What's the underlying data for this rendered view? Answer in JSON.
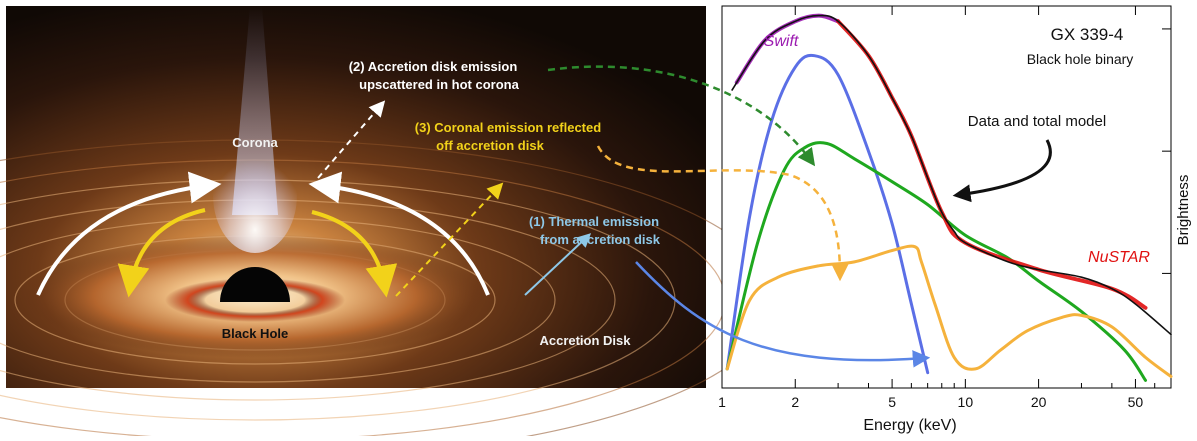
{
  "illustration": {
    "labels": {
      "corona": "Corona",
      "black_hole": "Black Hole",
      "accretion_disk": "Accretion Disk"
    },
    "processes": [
      {
        "line1": "(2) Accretion disk emission",
        "line2": "upscattered in hot corona",
        "color": "#ffffff"
      },
      {
        "line1": "(3) Coronal emission reflected",
        "line2": "off accretion disk",
        "color": "#f2d21a"
      },
      {
        "line1": "(1) Thermal emission",
        "line2": "from accretion disk",
        "color": "#8ec8e8"
      }
    ]
  },
  "chart_data": {
    "type": "line",
    "title": "GX 339-4",
    "subtitle": "Black hole binary",
    "xlabel": "Energy (keV)",
    "ylabel": "Brightness",
    "x_scale": "log",
    "xlim": [
      1,
      70
    ],
    "x_ticks": [
      "1",
      "2",
      "5",
      "10",
      "20",
      "50"
    ],
    "y_ticks_labeled": false,
    "instrument_labels": {
      "low_energy": "Swift",
      "high_energy": "NuSTAR"
    },
    "annotation": "Data and total model",
    "series": [
      {
        "name": "Data and total model",
        "color": "#111111",
        "points": [
          [
            1.1,
            0.78
          ],
          [
            1.5,
            0.91
          ],
          [
            2,
            0.96
          ],
          [
            2.5,
            0.975
          ],
          [
            3,
            0.96
          ],
          [
            4,
            0.87
          ],
          [
            5,
            0.76
          ],
          [
            6,
            0.66
          ],
          [
            7,
            0.55
          ],
          [
            8,
            0.46
          ],
          [
            9,
            0.41
          ],
          [
            10,
            0.38
          ],
          [
            15,
            0.33
          ],
          [
            20,
            0.31
          ],
          [
            30,
            0.29
          ],
          [
            40,
            0.26
          ],
          [
            50,
            0.22
          ],
          [
            70,
            0.14
          ]
        ]
      },
      {
        "name": "Swift data",
        "color": "#9b1ab0",
        "points": [
          [
            1.15,
            0.8
          ],
          [
            1.5,
            0.91
          ],
          [
            2,
            0.96
          ],
          [
            2.5,
            0.975
          ],
          [
            3,
            0.96
          ]
        ]
      },
      {
        "name": "NuSTAR data",
        "color": "#e01010",
        "points": [
          [
            3,
            0.96
          ],
          [
            4,
            0.87
          ],
          [
            5,
            0.76
          ],
          [
            6,
            0.66
          ],
          [
            8,
            0.46
          ],
          [
            10,
            0.38
          ],
          [
            20,
            0.31
          ],
          [
            40,
            0.26
          ],
          [
            55,
            0.21
          ]
        ]
      },
      {
        "name": "Thermal emission",
        "color": "#5b6fe6",
        "points": [
          [
            1.05,
            0.05
          ],
          [
            1.3,
            0.45
          ],
          [
            1.6,
            0.7
          ],
          [
            2,
            0.84
          ],
          [
            2.4,
            0.87
          ],
          [
            3,
            0.82
          ],
          [
            4,
            0.62
          ],
          [
            5,
            0.43
          ],
          [
            6,
            0.22
          ],
          [
            7,
            0.04
          ]
        ]
      },
      {
        "name": "Coronal emission",
        "color": "#1fa81f",
        "points": [
          [
            1.05,
            0.05
          ],
          [
            1.4,
            0.38
          ],
          [
            1.8,
            0.57
          ],
          [
            2.2,
            0.63
          ],
          [
            2.7,
            0.64
          ],
          [
            3.5,
            0.6
          ],
          [
            5,
            0.54
          ],
          [
            7,
            0.48
          ],
          [
            10,
            0.4
          ],
          [
            15,
            0.34
          ],
          [
            20,
            0.28
          ],
          [
            30,
            0.2
          ],
          [
            45,
            0.1
          ],
          [
            55,
            0.02
          ]
        ]
      },
      {
        "name": "Reflected emission",
        "color": "#f5b23c",
        "points": [
          [
            1.05,
            0.05
          ],
          [
            1.3,
            0.23
          ],
          [
            1.7,
            0.29
          ],
          [
            2.5,
            0.32
          ],
          [
            3.5,
            0.33
          ],
          [
            5,
            0.36
          ],
          [
            6.2,
            0.37
          ],
          [
            6.6,
            0.33
          ],
          [
            7.5,
            0.22
          ],
          [
            9,
            0.08
          ],
          [
            11,
            0.05
          ],
          [
            14,
            0.1
          ],
          [
            18,
            0.15
          ],
          [
            25,
            0.185
          ],
          [
            30,
            0.19
          ],
          [
            40,
            0.16
          ],
          [
            55,
            0.08
          ],
          [
            70,
            0.03
          ]
        ]
      }
    ]
  }
}
